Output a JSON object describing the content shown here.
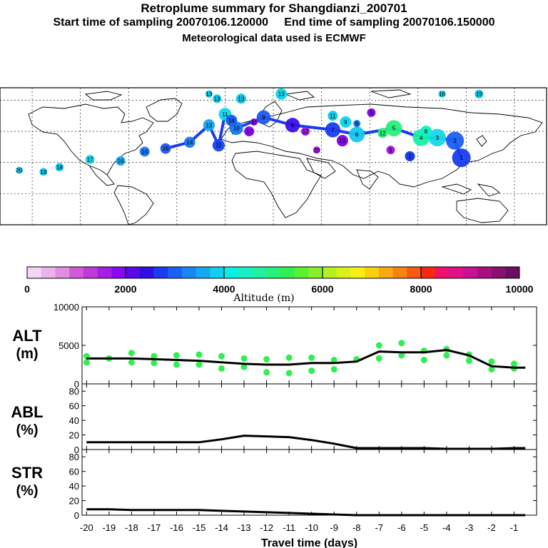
{
  "header": {
    "title": "Retroplume summary for Shangdianzi_200701",
    "start_label": "Start time of sampling 20070106.120000",
    "end_label": "End time of sampling 20070106.150000",
    "met_label": "Meteorological data used is ECMWF"
  },
  "colorbar": {
    "label": "Altitude (m)",
    "ticks": [
      "0",
      "2000",
      "4000",
      "6000",
      "8000",
      "10000"
    ],
    "colors": [
      "#f4d6f4",
      "#ebb2eb",
      "#e08fe0",
      "#d05ad8",
      "#c03ad8",
      "#a51ee6",
      "#8a08f0",
      "#5a0ae6",
      "#2e10e6",
      "#1a3cf0",
      "#1a60f4",
      "#1a86f4",
      "#16a8f2",
      "#10cef0",
      "#08eee8",
      "#16f0c4",
      "#20f0a0",
      "#28f07a",
      "#30f050",
      "#58f030",
      "#88f028",
      "#b4f020",
      "#dcf018",
      "#f8f014",
      "#f8d010",
      "#f8aa10",
      "#f88410",
      "#f85a10",
      "#f82810",
      "#f0106a",
      "#e0108a",
      "#c81090",
      "#a81080",
      "#8a1070",
      "#6a1060"
    ]
  },
  "map": {
    "markers": [
      {
        "label": "20",
        "lon": -158,
        "lat": 35,
        "color": "#14c8ec"
      },
      {
        "label": "19",
        "lon": -143,
        "lat": 34,
        "color": "#14c8ec"
      },
      {
        "label": "18",
        "lon": -133,
        "lat": 37,
        "color": "#14c8ec"
      },
      {
        "label": "17",
        "lon": -114,
        "lat": 42,
        "color": "#10d0ee"
      },
      {
        "label": "16",
        "lon": -95,
        "lat": 41,
        "color": "#14a8f0"
      },
      {
        "label": "16",
        "lon": -80,
        "lat": 47,
        "color": "#1478f2"
      },
      {
        "label": "15",
        "lon": -67,
        "lat": 49,
        "color": "#1e5af0"
      },
      {
        "label": "14",
        "lon": -52,
        "lat": 53,
        "color": "#1478f2"
      },
      {
        "label": "13",
        "lon": -40,
        "lat": 64,
        "color": "#14a8f0"
      },
      {
        "label": "12",
        "lon": -34,
        "lat": 51,
        "color": "#1a44f0"
      },
      {
        "label": "11",
        "lon": -30,
        "lat": 71,
        "color": "#10d8ee"
      },
      {
        "label": "10",
        "lon": -23,
        "lat": 62,
        "color": "#1478f2"
      },
      {
        "label": "9",
        "lon": -6,
        "lat": 69,
        "color": "#1e5af0"
      },
      {
        "label": "8",
        "lon": 12,
        "lat": 64,
        "color": "#3a10e6"
      },
      {
        "label": "7",
        "lon": 37,
        "lat": 61,
        "color": "#1a3cf0"
      },
      {
        "label": "6",
        "lon": 52,
        "lat": 58,
        "color": "#14c8ec"
      },
      {
        "label": "5",
        "lon": 75,
        "lat": 62,
        "color": "#28f07a"
      },
      {
        "label": "4",
        "lon": 92,
        "lat": 56,
        "color": "#14f0a6"
      },
      {
        "label": "3",
        "lon": 102,
        "lat": 56,
        "color": "#14d8e8"
      },
      {
        "label": "2",
        "lon": 113,
        "lat": 54,
        "color": "#1a60f4"
      },
      {
        "label": "1",
        "lon": 117,
        "lat": 43,
        "color": "#1a3cf0"
      }
    ],
    "scatter_labels": [
      "13",
      "13",
      "13",
      "13",
      "16",
      "19",
      "17",
      "14",
      "11",
      "12",
      "11",
      "9",
      "6",
      "5",
      "12",
      "19",
      "20",
      "9",
      "1",
      "8"
    ]
  },
  "chart_data": [
    {
      "type": "line",
      "panel": "ALT",
      "title": "ALT",
      "ylabel": "(m)",
      "ylim": [
        0,
        10000
      ],
      "yticks": [
        "10000",
        "5000",
        "0"
      ],
      "x": [
        -20,
        -19,
        -18,
        -17,
        -16,
        -15,
        -14,
        -13,
        -12,
        -11,
        -10,
        -9,
        -8,
        -7,
        -6,
        -5,
        -4,
        -3,
        -2,
        -1,
        -0.5
      ],
      "series": [
        {
          "name": "mean altitude",
          "values": [
            3300,
            3300,
            3300,
            3200,
            3100,
            3000,
            2800,
            2600,
            2500,
            2500,
            2700,
            2700,
            2900,
            4200,
            4100,
            4100,
            4400,
            3700,
            2300,
            2100,
            2100
          ]
        }
      ],
      "scatter": {
        "name": "plume clusters",
        "x": [
          -20,
          -19,
          -18,
          -17,
          -16,
          -15,
          -14,
          -13,
          -12,
          -11,
          -10,
          -9,
          -8,
          -7,
          -6,
          -5,
          -4,
          -3,
          -2,
          -1,
          -20,
          -18,
          -17,
          -16,
          -15,
          -14,
          -13,
          -12,
          -11,
          -10,
          -9,
          -7,
          -6,
          -5,
          -4,
          -3,
          -2,
          -1
        ],
        "y": [
          3600,
          3300,
          4000,
          3600,
          3700,
          3800,
          3600,
          3300,
          3200,
          3400,
          3400,
          3100,
          3200,
          5000,
          5300,
          4300,
          4500,
          3800,
          2900,
          2600,
          2800,
          2800,
          2700,
          2500,
          2500,
          2000,
          2200,
          1500,
          1400,
          1700,
          1900,
          3300,
          3700,
          3100,
          3700,
          3000,
          1900,
          2000
        ]
      },
      "xlabel": "Travel time (days)"
    },
    {
      "type": "line",
      "panel": "ABL",
      "title": "ABL",
      "ylabel": "(%)",
      "ylim": [
        0,
        90
      ],
      "yticks": [
        "80",
        "60",
        "40",
        "20",
        "0"
      ],
      "x": [
        -20,
        -19,
        -18,
        -17,
        -16,
        -15,
        -14,
        -13,
        -12,
        -11,
        -10,
        -9,
        -8,
        -7,
        -6,
        -5,
        -4,
        -3,
        -2,
        -1,
        -0.5
      ],
      "series": [
        {
          "name": "ABL",
          "values": [
            10,
            10,
            10,
            10,
            10,
            10,
            14,
            19,
            18,
            17,
            13,
            8,
            2,
            2,
            2,
            2,
            1,
            1,
            1,
            2,
            2
          ]
        }
      ]
    },
    {
      "type": "line",
      "panel": "STR",
      "title": "STR",
      "ylabel": "(%)",
      "ylim": [
        0,
        90
      ],
      "yticks": [
        "80",
        "60",
        "40",
        "20",
        "0"
      ],
      "x": [
        -20,
        -19,
        -18,
        -17,
        -16,
        -15,
        -14,
        -13,
        -12,
        -11,
        -10,
        -9,
        -8,
        -7,
        -6,
        -5,
        -4,
        -3,
        -2,
        -1,
        -0.5
      ],
      "series": [
        {
          "name": "STR",
          "values": [
            8,
            8,
            7,
            7,
            7,
            7,
            6,
            5,
            4,
            3,
            2,
            1,
            0,
            0,
            0,
            0,
            0,
            0,
            0,
            0,
            0
          ]
        }
      ],
      "xticks": [
        "-20",
        "-19",
        "-18",
        "-17",
        "-16",
        "-15",
        "-14",
        "-13",
        "-12",
        "-11",
        "-10",
        "-9",
        "-8",
        "-7",
        "-6",
        "-5",
        "-4",
        "-3",
        "-2",
        "-1"
      ],
      "xlabel": "Travel time (days)"
    }
  ]
}
